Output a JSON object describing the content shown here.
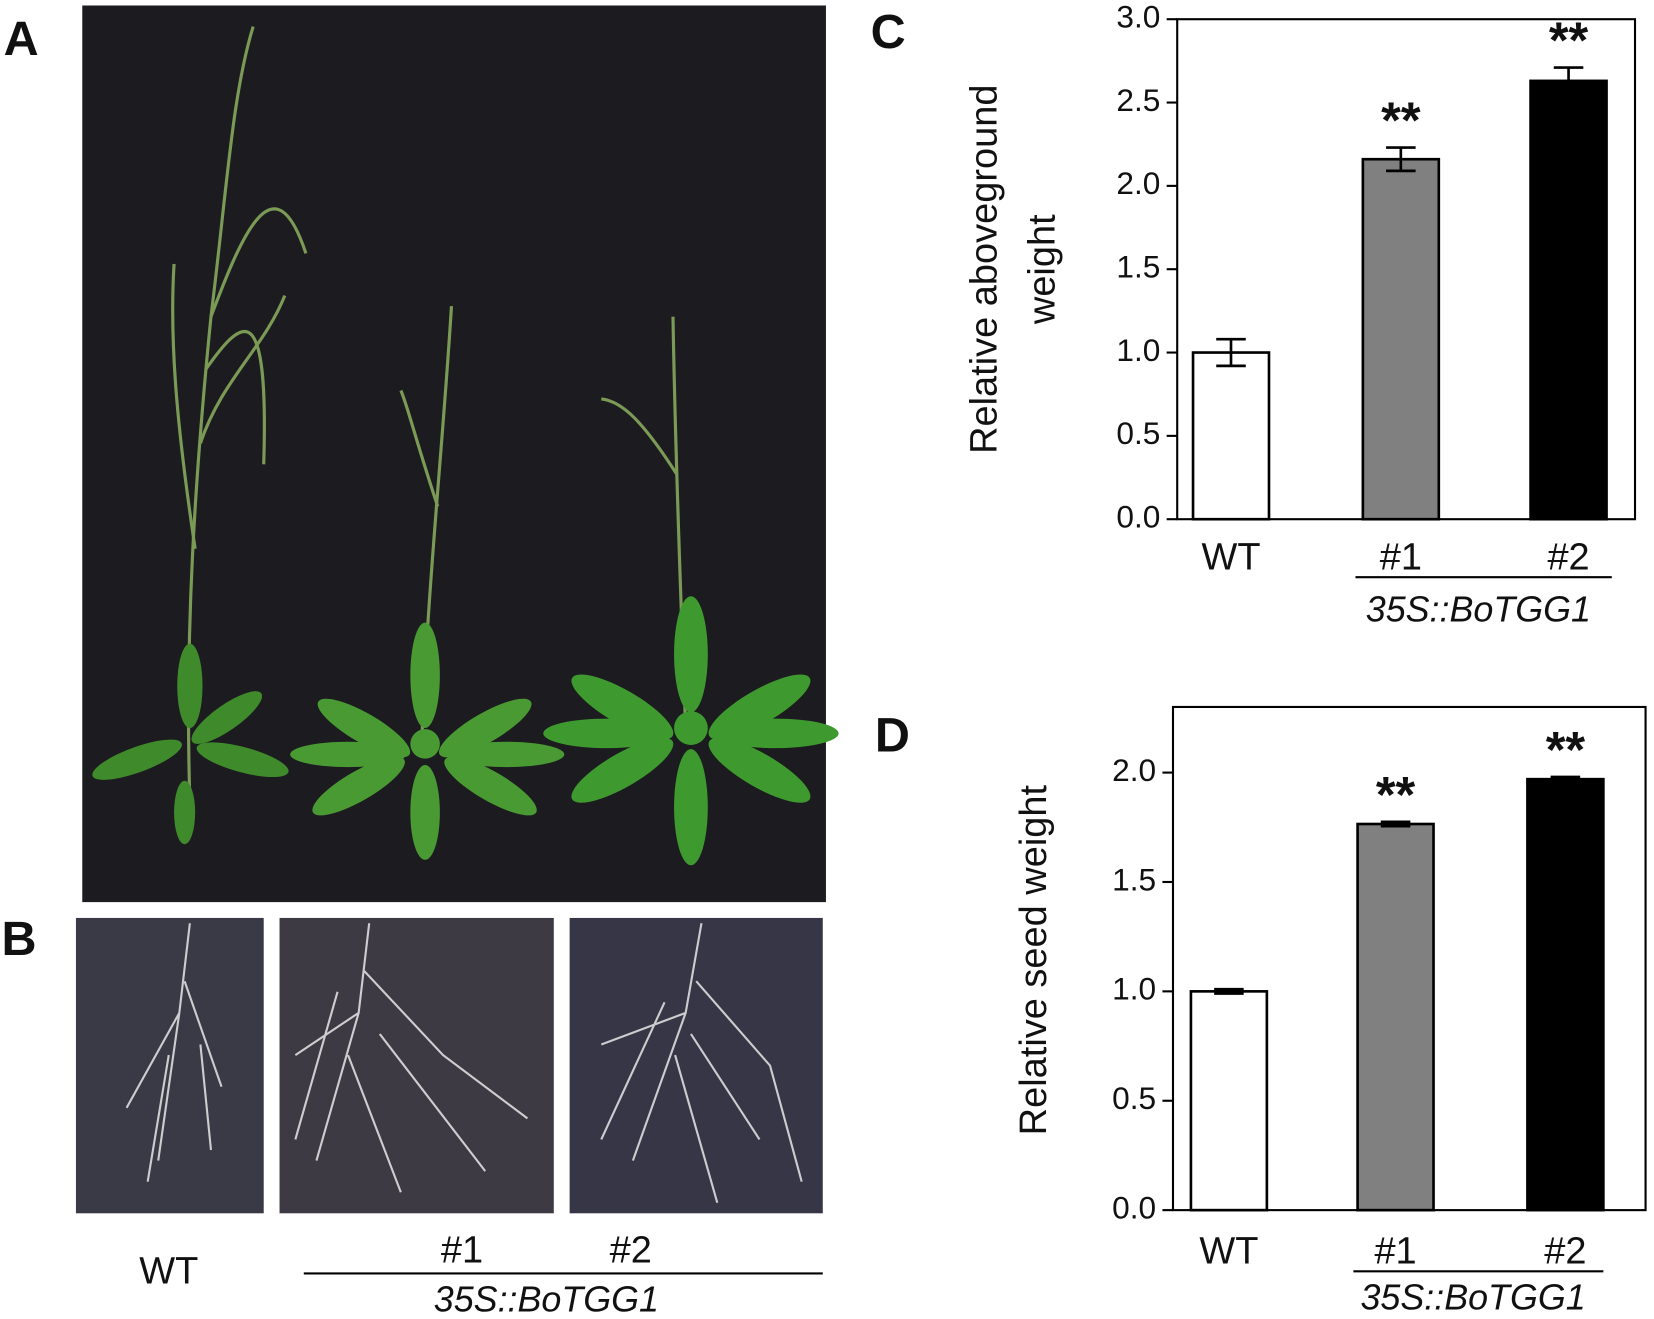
{
  "figure": {
    "panel_labels": [
      "A",
      "B",
      "C",
      "D"
    ],
    "panel_b": {
      "labels": [
        "WT",
        "#1",
        "#2"
      ],
      "group": "35S::BoTGG1"
    }
  },
  "chart_data": [
    {
      "type": "bar",
      "ylabel": [
        "Relative aboveground",
        "weight"
      ],
      "categories": [
        "WT",
        "#1",
        "#2"
      ],
      "group_label": "35S::BoTGG1",
      "values": [
        1.0,
        2.16,
        2.63
      ],
      "errors": [
        0.08,
        0.07,
        0.08
      ],
      "colors": [
        "#ffffff",
        "#808080",
        "#000000"
      ],
      "significance": [
        null,
        "**",
        "**"
      ],
      "ylim": [
        0,
        3
      ],
      "yticks": [
        {
          "value": 0,
          "label": "0.0"
        },
        {
          "value": 0.5,
          "label": "0.5"
        },
        {
          "value": 1,
          "label": "1.0"
        },
        {
          "value": 1.5,
          "label": "1.5"
        },
        {
          "value": 2,
          "label": "2.0"
        },
        {
          "value": 2.5,
          "label": "2.5"
        },
        {
          "value": 3,
          "label": "3.0"
        }
      ]
    },
    {
      "type": "bar",
      "ylabel": [
        "Relative seed weight"
      ],
      "categories": [
        "WT",
        "#1",
        "#2"
      ],
      "group_label": "35S::BoTGG1",
      "values": [
        1.0,
        1.765,
        1.97
      ],
      "errors": [
        0.01,
        0.01,
        0.01
      ],
      "colors": [
        "#ffffff",
        "#808080",
        "#000000"
      ],
      "significance": [
        null,
        "**",
        "**"
      ],
      "ylim": [
        0,
        2.3
      ],
      "yticks": [
        {
          "value": 0,
          "label": "0.0"
        },
        {
          "value": 0.5,
          "label": "0.5"
        },
        {
          "value": 1,
          "label": "1.0"
        },
        {
          "value": 1.5,
          "label": "1.5"
        },
        {
          "value": 2,
          "label": "2.0"
        }
      ]
    }
  ]
}
